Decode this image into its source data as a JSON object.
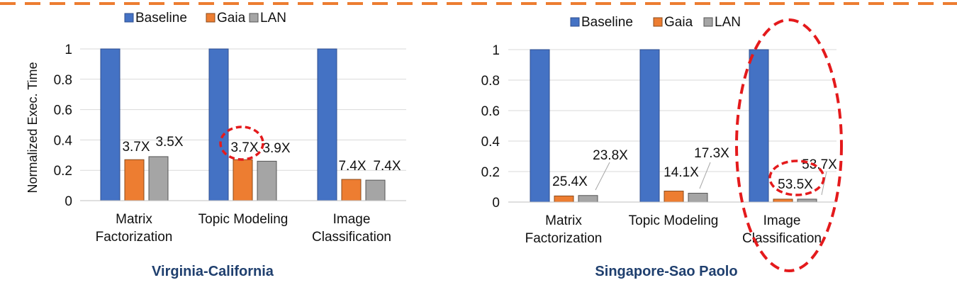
{
  "legend_labels": [
    "Baseline",
    "Gaia",
    "LAN"
  ],
  "colors": {
    "baseline": "#4472c4",
    "gaia": "#ed7d31",
    "lan": "#a5a5a5",
    "frame_dash": "#ed7d31",
    "highlight": "#e41a1c",
    "caption": "#1f3f6e"
  },
  "chart_data": [
    {
      "type": "bar",
      "title": "Virginia-California",
      "ylabel": "Normalized Exec. Time",
      "ylim": [
        0,
        1
      ],
      "yticks": [
        "0",
        "0.2",
        "0.4",
        "0.6",
        "0.8",
        "1"
      ],
      "categories": [
        [
          "Matrix",
          "Factorization"
        ],
        [
          "Topic Modeling"
        ],
        [
          "Image",
          "Classification"
        ]
      ],
      "series": [
        {
          "name": "Baseline",
          "values": [
            1,
            1,
            1
          ]
        },
        {
          "name": "Gaia",
          "values": [
            0.27,
            0.27,
            0.14
          ]
        },
        {
          "name": "LAN",
          "values": [
            0.29,
            0.26,
            0.135
          ]
        }
      ],
      "data_labels": {
        "Gaia": [
          "3.7X",
          "3.7X",
          "7.4X"
        ],
        "LAN": [
          "3.5X",
          "3.9X",
          "7.4X"
        ]
      },
      "highlighted": [
        "Topic Modeling Gaia 3.7X"
      ]
    },
    {
      "type": "bar",
      "title": "Singapore-Sao Paolo",
      "ylabel": "",
      "ylim": [
        0,
        1
      ],
      "yticks": [
        "0",
        "0.2",
        "0.4",
        "0.6",
        "0.8",
        "1"
      ],
      "categories": [
        [
          "Matrix",
          "Factorization"
        ],
        [
          "Topic Modeling"
        ],
        [
          "Image",
          "Classification"
        ]
      ],
      "series": [
        {
          "name": "Baseline",
          "values": [
            1,
            1,
            1
          ]
        },
        {
          "name": "Gaia",
          "values": [
            0.04,
            0.072,
            0.019
          ]
        },
        {
          "name": "LAN",
          "values": [
            0.043,
            0.058,
            0.019
          ]
        }
      ],
      "data_labels": {
        "Gaia": [
          "25.4X",
          "14.1X",
          "53.5X"
        ],
        "LAN": [
          "23.8X",
          "17.3X",
          "53.7X"
        ]
      },
      "highlighted": [
        "Image Classification"
      ]
    }
  ]
}
